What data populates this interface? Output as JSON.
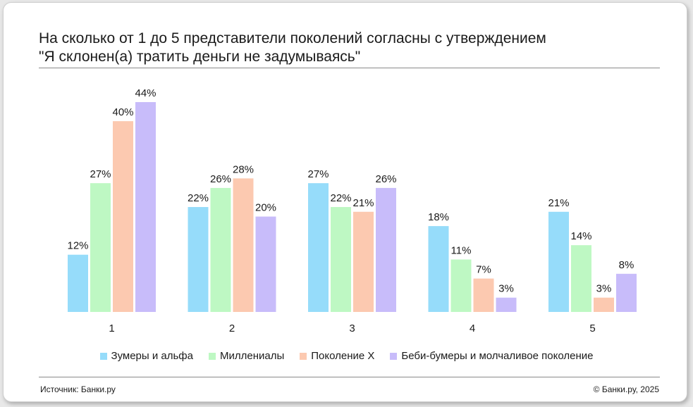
{
  "title_line1": "На сколько от 1 до 5 представители поколений согласны с утверждением",
  "title_line2": "\"Я склонен(а) тратить деньги не задумываясь\"",
  "source": "Источник: Банки.ру",
  "copyright": "© Банки.ру, 2025",
  "chart_data": {
    "type": "bar",
    "title": "На сколько от 1 до 5 представители поколений согласны с утверждением \"Я склонен(а) тратить деньги не задумываясь\"",
    "categories": [
      "1",
      "2",
      "3",
      "4",
      "5"
    ],
    "series": [
      {
        "name": "Зумеры и альфа",
        "color": "#96dcfa",
        "values": [
          12,
          22,
          27,
          18,
          21
        ]
      },
      {
        "name": "Миллениалы",
        "color": "#bef8c3",
        "values": [
          27,
          26,
          22,
          11,
          14
        ]
      },
      {
        "name": "Поколение X",
        "color": "#fcc9b0",
        "values": [
          40,
          28,
          21,
          7,
          3
        ]
      },
      {
        "name": "Беби-бумеры и молчаливое поколение",
        "color": "#c8bcfa",
        "values": [
          44,
          20,
          26,
          3,
          8
        ]
      }
    ],
    "value_suffix": "%",
    "ylim": [
      0,
      44
    ],
    "grid": false,
    "legend": "bottom"
  }
}
